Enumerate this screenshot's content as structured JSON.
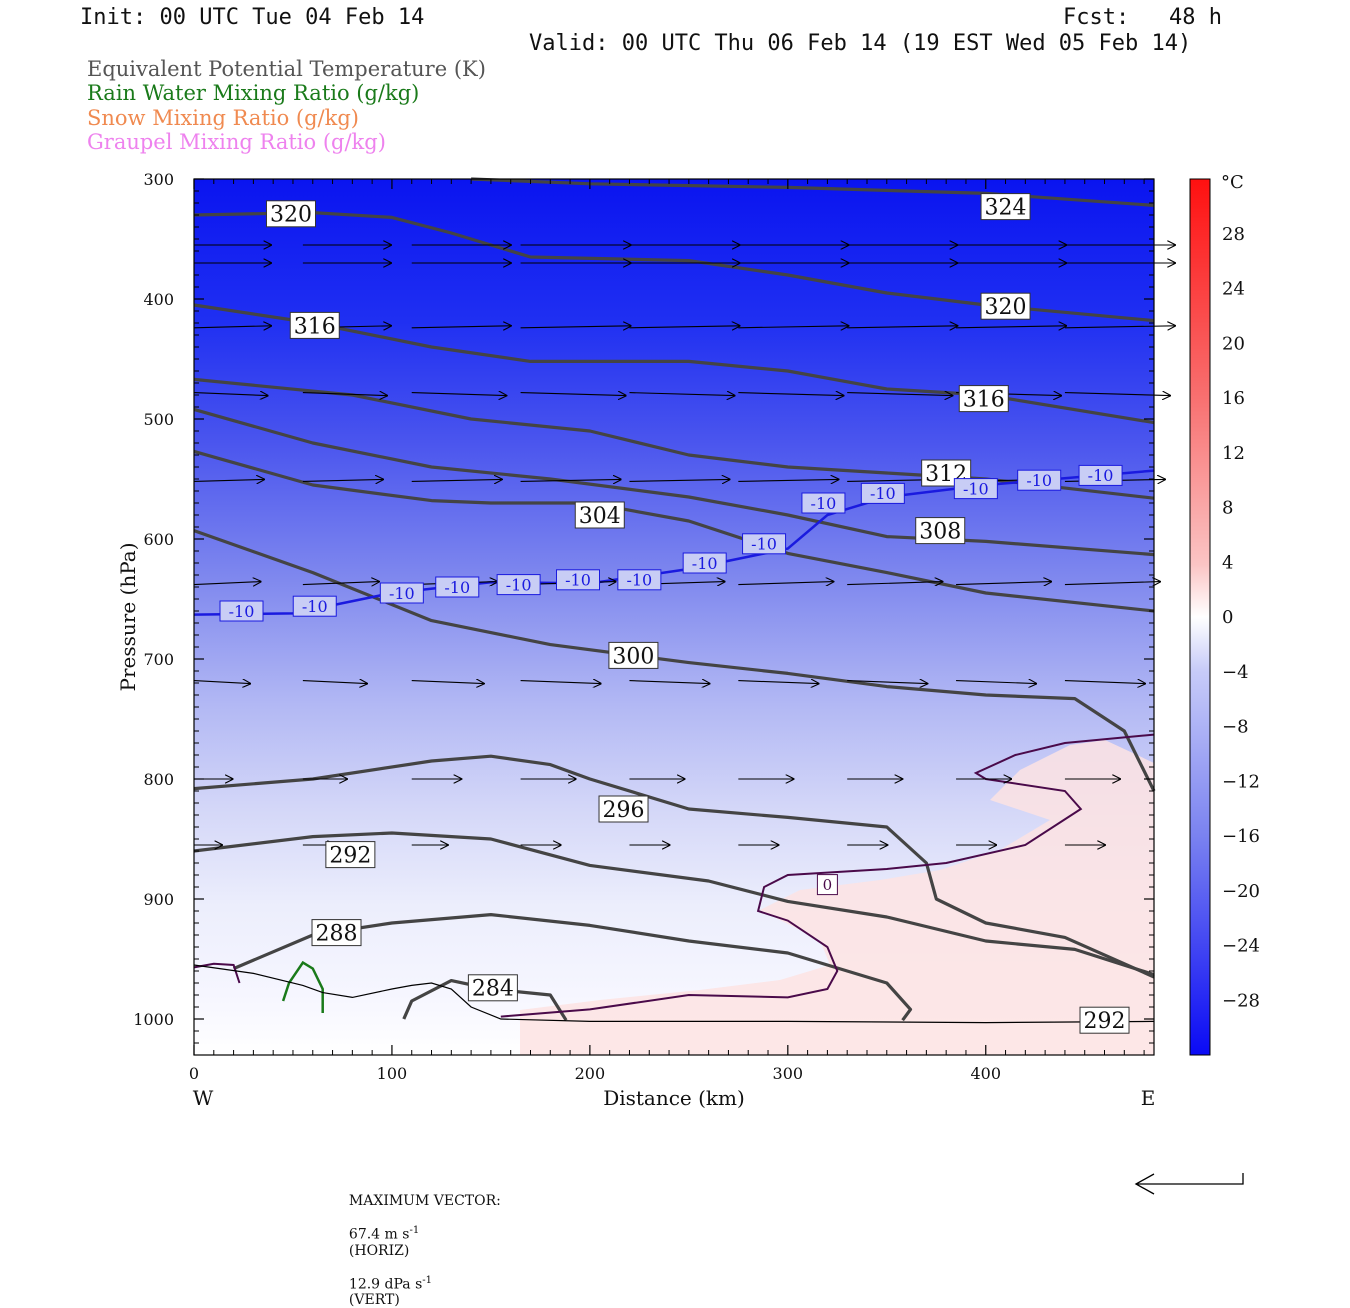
{
  "header": {
    "init": "Init: 00 UTC Tue 04 Feb 14",
    "fcst": "Fcst:   48 h",
    "valid": "Valid: 00 UTC Thu 06 Feb 14 (19 EST Wed 05 Feb 14)"
  },
  "legend": [
    {
      "label": "Equivalent Potential Temperature (K)",
      "color": "#555555"
    },
    {
      "label": "Rain Water Mixing Ratio (g/kg)",
      "color": "#1a7a1a"
    },
    {
      "label": "Snow Mixing Ratio (g/kg)",
      "color": "#f08a50"
    },
    {
      "label": "Graupel Mixing Ratio (g/kg)",
      "color": "#ee82ee"
    }
  ],
  "chart_data": {
    "type": "heatmap",
    "xlabel": "Distance (km)",
    "ylabel": "Pressure (hPa)",
    "x_ticks": [
      0,
      100,
      200,
      300,
      400
    ],
    "y_ticks": [
      300,
      400,
      500,
      600,
      700,
      800,
      900,
      1000
    ],
    "xlim": [
      0,
      485
    ],
    "ylim": [
      300,
      1030
    ],
    "x_end_labels": {
      "left": "W",
      "right": "E"
    },
    "colorbar": {
      "unit": "°C",
      "ticks": [
        28,
        24,
        20,
        16,
        12,
        8,
        4,
        0,
        -4,
        -8,
        -12,
        -16,
        -20,
        -24,
        -28
      ],
      "range": [
        -32,
        32
      ]
    },
    "theta_e_contours": [
      {
        "label": "324",
        "points": [
          [
            140,
            300
          ],
          [
            200,
            304
          ],
          [
            300,
            307
          ],
          [
            400,
            312
          ],
          [
            485,
            322
          ]
        ],
        "labels": [
          [
            410,
            323
          ]
        ]
      },
      {
        "label": "320",
        "points": [
          [
            0,
            330
          ],
          [
            60,
            328
          ],
          [
            100,
            332
          ],
          [
            130,
            345
          ],
          [
            170,
            365
          ],
          [
            250,
            368
          ],
          [
            300,
            380
          ],
          [
            350,
            395
          ],
          [
            400,
            405
          ],
          [
            485,
            418
          ]
        ],
        "labels": [
          [
            49,
            329
          ],
          [
            410,
            406
          ]
        ]
      },
      {
        "label": "316",
        "points": [
          [
            0,
            405
          ],
          [
            60,
            420
          ],
          [
            120,
            440
          ],
          [
            170,
            452
          ],
          [
            250,
            452
          ],
          [
            300,
            460
          ],
          [
            350,
            475
          ],
          [
            400,
            480
          ],
          [
            485,
            503
          ]
        ],
        "labels": [
          [
            61,
            422
          ],
          [
            399,
            483
          ]
        ]
      },
      {
        "label": "312",
        "points": [
          [
            0,
            467
          ],
          [
            80,
            480
          ],
          [
            140,
            500
          ],
          [
            200,
            510
          ],
          [
            250,
            530
          ],
          [
            300,
            540
          ],
          [
            350,
            545
          ],
          [
            400,
            550
          ],
          [
            485,
            566
          ]
        ],
        "labels": [
          [
            380,
            545
          ]
        ]
      },
      {
        "label": "308",
        "points": [
          [
            0,
            492
          ],
          [
            60,
            520
          ],
          [
            120,
            540
          ],
          [
            180,
            550
          ],
          [
            250,
            565
          ],
          [
            300,
            580
          ],
          [
            350,
            598
          ],
          [
            400,
            602
          ],
          [
            485,
            613
          ]
        ],
        "labels": [
          [
            377,
            593
          ]
        ]
      },
      {
        "label": "304",
        "points": [
          [
            0,
            527
          ],
          [
            60,
            555
          ],
          [
            120,
            568
          ],
          [
            150,
            570
          ],
          [
            200,
            570
          ],
          [
            250,
            585
          ],
          [
            300,
            612
          ],
          [
            350,
            628
          ],
          [
            400,
            645
          ],
          [
            485,
            660
          ]
        ],
        "labels": [
          [
            205,
            580
          ]
        ]
      },
      {
        "label": "300",
        "points": [
          [
            0,
            593
          ],
          [
            60,
            628
          ],
          [
            120,
            668
          ],
          [
            180,
            688
          ],
          [
            250,
            703
          ],
          [
            300,
            712
          ],
          [
            350,
            723
          ],
          [
            400,
            730
          ],
          [
            445,
            733
          ],
          [
            470,
            760
          ],
          [
            485,
            810
          ]
        ],
        "labels": [
          [
            222,
            697
          ]
        ]
      },
      {
        "label": "296",
        "points": [
          [
            0,
            808
          ],
          [
            60,
            800
          ],
          [
            120,
            785
          ],
          [
            150,
            781
          ],
          [
            180,
            788
          ],
          [
            200,
            800
          ],
          [
            250,
            825
          ],
          [
            300,
            832
          ],
          [
            350,
            840
          ],
          [
            370,
            870
          ],
          [
            375,
            900
          ],
          [
            400,
            920
          ],
          [
            440,
            932
          ],
          [
            485,
            965
          ]
        ],
        "labels": [
          [
            217,
            825
          ]
        ]
      },
      {
        "label": "292",
        "points": [
          [
            0,
            860
          ],
          [
            60,
            848
          ],
          [
            100,
            845
          ],
          [
            150,
            850
          ],
          [
            200,
            872
          ],
          [
            260,
            885
          ],
          [
            300,
            902
          ],
          [
            350,
            915
          ],
          [
            400,
            935
          ],
          [
            445,
            942
          ],
          [
            485,
            963
          ]
        ],
        "labels": [
          [
            79,
            863
          ]
        ]
      },
      {
        "label": "288",
        "points": [
          [
            20,
            958
          ],
          [
            60,
            930
          ],
          [
            100,
            920
          ],
          [
            150,
            913
          ],
          [
            200,
            922
          ],
          [
            250,
            935
          ],
          [
            300,
            945
          ],
          [
            350,
            970
          ],
          [
            362,
            992
          ],
          [
            358,
            1001
          ]
        ],
        "labels": [
          [
            72,
            928
          ]
        ]
      },
      {
        "label": "284",
        "points": [
          [
            106,
            1000
          ],
          [
            110,
            985
          ],
          [
            130,
            968
          ],
          [
            150,
            975
          ],
          [
            180,
            980
          ],
          [
            188,
            1001
          ]
        ],
        "labels": [
          [
            151,
            974
          ]
        ]
      }
    ],
    "theta_e_extra_labels": [
      {
        "label": "292",
        "at": [
          460,
          1001
        ]
      }
    ],
    "isotherm_minus10": {
      "label": "-10",
      "points": [
        [
          0,
          663
        ],
        [
          50,
          662
        ],
        [
          100,
          645
        ],
        [
          150,
          636
        ],
        [
          200,
          637
        ],
        [
          250,
          625
        ],
        [
          300,
          608
        ],
        [
          320,
          580
        ],
        [
          350,
          565
        ],
        [
          400,
          555
        ],
        [
          485,
          543
        ]
      ],
      "labels": [
        [
          24,
          660
        ],
        [
          61,
          656
        ],
        [
          105,
          645
        ],
        [
          133,
          640
        ],
        [
          164,
          638
        ],
        [
          194,
          634
        ],
        [
          225,
          634
        ],
        [
          258,
          620
        ],
        [
          288,
          604
        ],
        [
          318,
          570
        ],
        [
          348,
          562
        ],
        [
          395,
          558
        ],
        [
          427,
          551
        ],
        [
          458,
          547
        ]
      ]
    },
    "isotherm_0": {
      "label": "0",
      "segments": [
        [
          [
            0,
            957
          ],
          [
            10,
            954
          ],
          [
            20,
            955
          ],
          [
            23,
            970
          ]
        ],
        [
          [
            155,
            998
          ],
          [
            200,
            992
          ],
          [
            250,
            980
          ],
          [
            300,
            982
          ],
          [
            320,
            975
          ],
          [
            325,
            960
          ],
          [
            320,
            940
          ],
          [
            300,
            918
          ],
          [
            285,
            910
          ],
          [
            288,
            890
          ],
          [
            300,
            880
          ],
          [
            350,
            875
          ],
          [
            380,
            870
          ],
          [
            420,
            855
          ],
          [
            448,
            825
          ],
          [
            440,
            810
          ],
          [
            400,
            800
          ],
          [
            395,
            795
          ],
          [
            415,
            780
          ],
          [
            440,
            770
          ],
          [
            485,
            763
          ]
        ]
      ],
      "labels": [
        [
          320,
          888
        ]
      ]
    },
    "rain_mixing_ratio": {
      "segments": [
        [
          [
            45,
            985
          ],
          [
            48,
            970
          ],
          [
            55,
            953
          ],
          [
            60,
            958
          ],
          [
            65,
            975
          ],
          [
            65,
            995
          ]
        ]
      ]
    },
    "wind_vectors": {
      "max_horiz": "67.4 m s",
      "max_horiz_unit": "(HORIZ)",
      "max_vert": "12.9 dPa s",
      "max_vert_unit": "(VERT)",
      "label": "MAXIMUM VECTOR:",
      "exp": "-1"
    }
  }
}
